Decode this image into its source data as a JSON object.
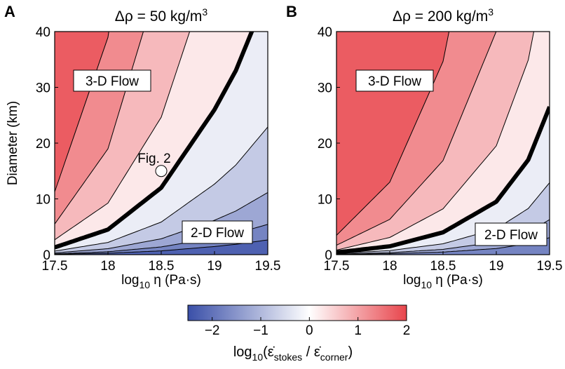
{
  "chart_data": [
    {
      "panel": "A",
      "type": "contour",
      "title_prefix": "Δρ = 50 kg/m",
      "title_sup": "3",
      "xlabel": "log",
      "xlabel_sub": "10",
      "xlabel_rest": " η (Pa·s)",
      "ylabel": "Diameter (km)",
      "xlim": [
        17.5,
        19.5
      ],
      "ylim": [
        0,
        40
      ],
      "xticks": [
        "17.5",
        "18",
        "18.5",
        "19",
        "19.5"
      ],
      "yticks": [
        "0",
        "10",
        "20",
        "30",
        "40"
      ],
      "contour_levels": [
        -2,
        -1.5,
        -1,
        -0.5,
        0,
        0.5,
        1,
        1.5
      ],
      "bold_contour_level": 0,
      "bold_contour": {
        "x": [
          17.5,
          18,
          18.5,
          19,
          19.2,
          19.35
        ],
        "y": [
          1.3,
          4.5,
          12,
          26,
          33,
          40
        ]
      },
      "annotations": [
        {
          "text": "3-D Flow"
        },
        {
          "text": "2-D Flow"
        },
        {
          "text": "Fig. 2",
          "marker": {
            "x": 18.5,
            "y": 15
          }
        }
      ]
    },
    {
      "panel": "B",
      "type": "contour",
      "title_prefix": "Δρ = 200 kg/m",
      "title_sup": "3",
      "xlabel": "log",
      "xlabel_sub": "10",
      "xlabel_rest": " η (Pa·s)",
      "ylabel": "",
      "xlim": [
        17.5,
        19.5
      ],
      "ylim": [
        0,
        40
      ],
      "xticks": [
        "17.5",
        "18",
        "18.5",
        "19",
        "19.5"
      ],
      "yticks": [
        "0",
        "10",
        "20",
        "30",
        "40"
      ],
      "contour_levels": [
        -1.5,
        -1,
        -0.5,
        0,
        0.5,
        1,
        1.5
      ],
      "bold_contour_level": 0,
      "bold_contour": {
        "x": [
          17.5,
          18,
          18.5,
          19,
          19.3,
          19.5
        ],
        "y": [
          0.4,
          1.5,
          4,
          9.5,
          17,
          26.5
        ]
      },
      "annotations": [
        {
          "text": "3-D Flow"
        },
        {
          "text": "2-D Flow"
        }
      ]
    }
  ],
  "colorbar": {
    "range": [
      -2.5,
      2
    ],
    "ticks": [
      "−2",
      "−1",
      "0",
      "1",
      "2"
    ],
    "tick_values": [
      -2,
      -1,
      0,
      1,
      2
    ],
    "colors": {
      "low": "#3a4fa8",
      "mid": "#ffffff",
      "high": "#e8454c"
    },
    "label_prefix": "log",
    "label_sub1": "10",
    "label_open": "(",
    "label_num": "ε̇",
    "label_num_sub": "stokes",
    "label_slash": " / ",
    "label_den": "ε̇",
    "label_den_sub": "corner",
    "label_close": ")"
  }
}
